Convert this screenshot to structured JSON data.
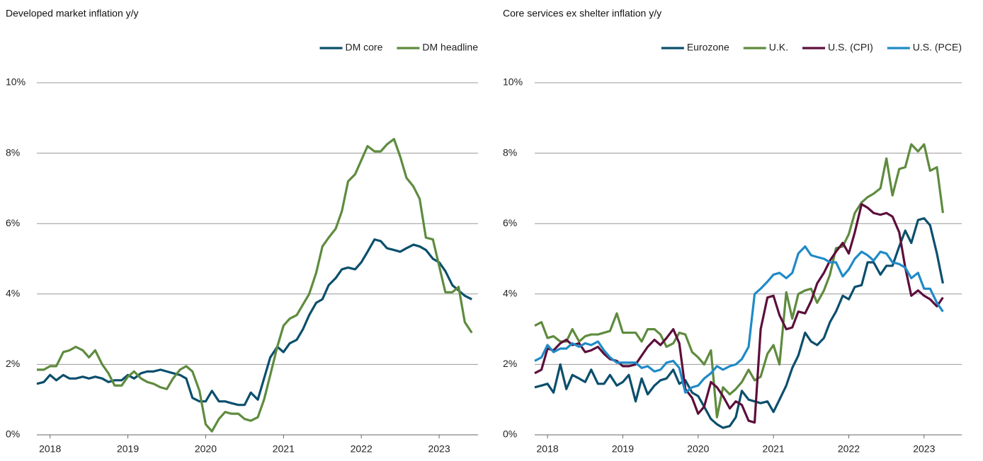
{
  "chart_data": [
    {
      "type": "line",
      "title": "Developed market inflation y/y",
      "legend": "top-right",
      "grid": true,
      "x": [
        2017.83,
        2017.92,
        2018,
        2018.08,
        2018.17,
        2018.25,
        2018.33,
        2018.42,
        2018.5,
        2018.58,
        2018.67,
        2018.75,
        2018.83,
        2018.92,
        2019,
        2019.08,
        2019.17,
        2019.25,
        2019.33,
        2019.42,
        2019.5,
        2019.58,
        2019.67,
        2019.75,
        2019.83,
        2019.92,
        2020,
        2020.08,
        2020.17,
        2020.25,
        2020.33,
        2020.42,
        2020.5,
        2020.58,
        2020.67,
        2020.75,
        2020.83,
        2020.92,
        2021,
        2021.08,
        2021.17,
        2021.25,
        2021.33,
        2021.42,
        2021.5,
        2021.58,
        2021.67,
        2021.75,
        2021.83,
        2021.92,
        2022,
        2022.08,
        2022.17,
        2022.25,
        2022.33,
        2022.42,
        2022.5,
        2022.58,
        2022.67,
        2022.75,
        2022.83,
        2022.92,
        2023,
        2023.08,
        2023.17,
        2023.25,
        2023.33,
        2023.42
      ],
      "xlim": [
        2017.83,
        2023.5
      ],
      "xticks": [
        2018,
        2019,
        2020,
        2021,
        2022,
        2023
      ],
      "ylim": [
        0,
        10
      ],
      "yticks": [
        {
          "value": 0,
          "label": "0%"
        },
        {
          "value": 2,
          "label": "2%"
        },
        {
          "value": 4,
          "label": "4%"
        },
        {
          "value": 6,
          "label": "6%"
        },
        {
          "value": 8,
          "label": "8%"
        },
        {
          "value": 10,
          "label": "10%"
        }
      ],
      "series": [
        {
          "name": "DM core",
          "color": "#0b4f6c",
          "values": [
            1.45,
            1.5,
            1.7,
            1.55,
            1.7,
            1.6,
            1.6,
            1.65,
            1.6,
            1.65,
            1.6,
            1.5,
            1.55,
            1.55,
            1.7,
            1.6,
            1.75,
            1.8,
            1.8,
            1.85,
            1.8,
            1.75,
            1.7,
            1.6,
            1.05,
            0.95,
            0.95,
            1.25,
            0.95,
            0.95,
            0.9,
            0.85,
            0.85,
            1.2,
            1.0,
            1.6,
            2.2,
            2.5,
            2.35,
            2.6,
            2.7,
            3.0,
            3.4,
            3.75,
            3.85,
            4.25,
            4.45,
            4.7,
            4.75,
            4.7,
            4.9,
            5.2,
            5.55,
            5.5,
            5.3,
            5.25,
            5.2,
            5.3,
            5.4,
            5.35,
            5.25,
            5.0,
            4.9,
            4.65,
            4.25,
            4.1,
            3.95,
            3.85
          ]
        },
        {
          "name": "DM headline",
          "color": "#5e8b3e",
          "values": [
            1.85,
            1.85,
            1.95,
            1.95,
            2.35,
            2.4,
            2.5,
            2.4,
            2.2,
            2.4,
            2.0,
            1.75,
            1.4,
            1.4,
            1.65,
            1.8,
            1.6,
            1.5,
            1.45,
            1.35,
            1.3,
            1.6,
            1.85,
            1.95,
            1.8,
            1.25,
            0.3,
            0.1,
            0.45,
            0.65,
            0.6,
            0.6,
            0.45,
            0.4,
            0.5,
            1.0,
            1.7,
            2.5,
            3.1,
            3.3,
            3.4,
            3.7,
            4.0,
            4.6,
            5.35,
            5.6,
            5.85,
            6.35,
            7.2,
            7.4,
            7.8,
            8.2,
            8.05,
            8.05,
            8.25,
            8.4,
            7.9,
            7.3,
            7.05,
            6.7,
            5.6,
            5.55,
            4.8,
            4.05,
            4.05,
            4.2,
            3.2,
            2.9
          ]
        }
      ]
    },
    {
      "type": "line",
      "title": "Core services ex shelter inflation y/y",
      "legend": "top-right",
      "grid": true,
      "x": [
        2017.83,
        2017.92,
        2018,
        2018.08,
        2018.17,
        2018.25,
        2018.33,
        2018.42,
        2018.5,
        2018.58,
        2018.67,
        2018.75,
        2018.83,
        2018.92,
        2019,
        2019.08,
        2019.17,
        2019.25,
        2019.33,
        2019.42,
        2019.5,
        2019.58,
        2019.67,
        2019.75,
        2019.83,
        2019.92,
        2020,
        2020.08,
        2020.17,
        2020.25,
        2020.33,
        2020.42,
        2020.5,
        2020.58,
        2020.67,
        2020.75,
        2020.83,
        2020.92,
        2021,
        2021.08,
        2021.17,
        2021.25,
        2021.33,
        2021.42,
        2021.5,
        2021.58,
        2021.67,
        2021.75,
        2021.83,
        2021.92,
        2022,
        2022.08,
        2022.17,
        2022.25,
        2022.33,
        2022.42,
        2022.5,
        2022.58,
        2022.67,
        2022.75,
        2022.83,
        2022.92,
        2023,
        2023.08,
        2023.17,
        2023.25
      ],
      "xlim": [
        2017.83,
        2023.5
      ],
      "xticks": [
        2018,
        2019,
        2020,
        2021,
        2022,
        2023
      ],
      "ylim": [
        0,
        10
      ],
      "yticks": [
        {
          "value": 0,
          "label": "0%"
        },
        {
          "value": 2,
          "label": "2%"
        },
        {
          "value": 4,
          "label": "4%"
        },
        {
          "value": 6,
          "label": "6%"
        },
        {
          "value": 8,
          "label": "8%"
        },
        {
          "value": 10,
          "label": "10%"
        }
      ],
      "series": [
        {
          "name": "Eurozone",
          "color": "#0b4f6c",
          "values": [
            1.35,
            1.4,
            1.45,
            1.2,
            2.0,
            1.3,
            1.7,
            1.6,
            1.5,
            1.85,
            1.45,
            1.45,
            1.7,
            1.4,
            1.5,
            1.7,
            0.95,
            1.6,
            1.15,
            1.4,
            1.55,
            1.6,
            1.85,
            1.45,
            1.55,
            1.2,
            1.1,
            0.8,
            0.45,
            0.3,
            0.2,
            0.25,
            0.5,
            1.25,
            1.0,
            0.95,
            0.9,
            0.95,
            0.65,
            1.0,
            1.4,
            1.9,
            2.25,
            2.9,
            2.65,
            2.55,
            2.75,
            3.2,
            3.5,
            3.95,
            3.85,
            4.2,
            4.25,
            4.9,
            4.9,
            4.55,
            4.8,
            4.8,
            5.35,
            5.8,
            5.45,
            6.1,
            6.15,
            5.95,
            5.15,
            4.3
          ]
        },
        {
          "name": "U.K.",
          "color": "#5e8b3e",
          "values": [
            3.1,
            3.2,
            2.75,
            2.8,
            2.65,
            2.65,
            3.0,
            2.65,
            2.8,
            2.85,
            2.85,
            2.9,
            2.95,
            3.45,
            2.9,
            2.9,
            2.9,
            2.65,
            3.0,
            3.0,
            2.85,
            2.5,
            2.6,
            2.9,
            2.85,
            2.35,
            2.2,
            2.0,
            2.4,
            0.5,
            1.35,
            1.15,
            1.3,
            1.5,
            1.85,
            1.55,
            1.65,
            2.3,
            2.55,
            2.0,
            4.05,
            3.3,
            4.0,
            4.1,
            4.15,
            3.75,
            4.1,
            4.55,
            5.3,
            5.35,
            5.7,
            6.3,
            6.6,
            6.75,
            6.85,
            7.0,
            7.85,
            6.8,
            7.55,
            7.6,
            8.25,
            8.05,
            8.25,
            7.5,
            7.6,
            6.3
          ]
        },
        {
          "name": "U.S. (CPI)",
          "color": "#5c0f3c",
          "values": [
            1.75,
            1.85,
            2.45,
            2.4,
            2.6,
            2.7,
            2.55,
            2.6,
            2.35,
            2.4,
            2.5,
            2.3,
            2.15,
            2.1,
            1.95,
            1.95,
            2.0,
            2.25,
            2.5,
            2.7,
            2.55,
            2.75,
            3.0,
            2.6,
            1.3,
            1.05,
            0.6,
            0.8,
            1.5,
            1.35,
            1.1,
            0.75,
            0.95,
            0.85,
            0.4,
            0.35,
            3.0,
            3.9,
            3.95,
            3.4,
            3.0,
            3.05,
            3.5,
            3.45,
            3.8,
            4.3,
            4.6,
            4.95,
            5.2,
            5.45,
            5.15,
            5.75,
            6.55,
            6.45,
            6.3,
            6.25,
            6.3,
            6.2,
            5.75,
            4.75,
            3.95,
            4.1,
            3.95,
            3.85,
            3.65,
            3.9
          ]
        },
        {
          "name": "U.S. (PCE)",
          "color": "#1f8ac7",
          "values": [
            2.1,
            2.2,
            2.55,
            2.35,
            2.45,
            2.45,
            2.6,
            2.5,
            2.6,
            2.55,
            2.65,
            2.4,
            2.2,
            2.05,
            2.05,
            2.05,
            2.05,
            1.9,
            1.95,
            1.8,
            1.85,
            2.05,
            2.1,
            1.9,
            1.2,
            1.35,
            1.4,
            1.6,
            1.75,
            1.95,
            1.85,
            1.95,
            2.0,
            2.15,
            2.5,
            4.0,
            4.15,
            4.35,
            4.55,
            4.6,
            4.45,
            4.6,
            5.15,
            5.35,
            5.1,
            5.05,
            5.0,
            4.9,
            4.9,
            4.5,
            4.7,
            5.0,
            5.2,
            5.1,
            4.95,
            5.2,
            5.15,
            4.9,
            4.85,
            4.75,
            4.45,
            4.6,
            4.15,
            4.15,
            3.75,
            3.5
          ]
        }
      ]
    }
  ]
}
